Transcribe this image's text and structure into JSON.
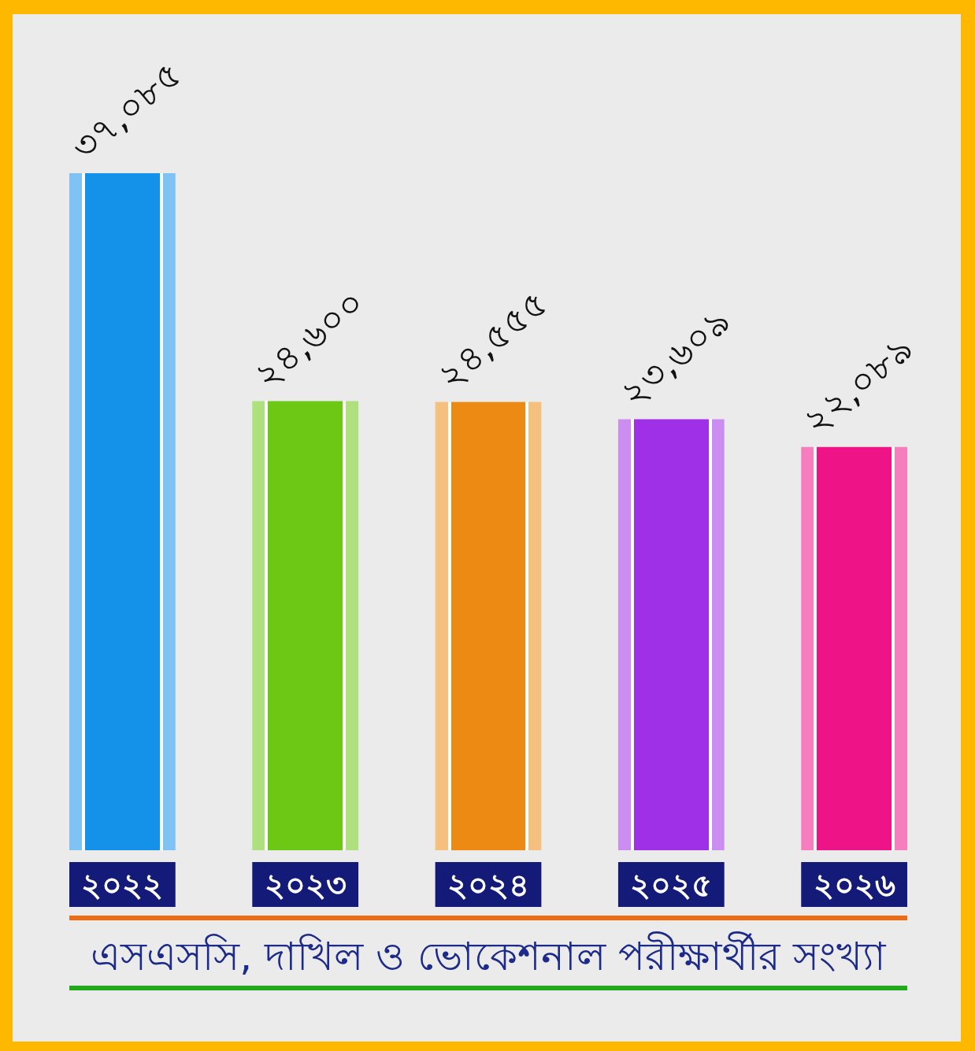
{
  "chart_data": {
    "type": "bar",
    "title": "এসএসসি, দাখিল ও ভোকেশনাল পরীক্ষার্থীর সংখ্যা",
    "categories": [
      "২০২২",
      "২০২৩",
      "২০২৪",
      "২০২৫",
      "২০২৬"
    ],
    "values": [
      37085,
      24600,
      24555,
      23609,
      22089
    ],
    "colors": [
      "#1492ea",
      "#6cc814",
      "#ec8a14",
      "#a030e8",
      "#ee1488"
    ],
    "value_labels": [
      "৩৭,০৮৫",
      "২৪,৬০০",
      "২৪,৫৫৫",
      "২৩,৬০৯",
      "২২,০৮৯"
    ],
    "tick_labels": "x"
  }
}
